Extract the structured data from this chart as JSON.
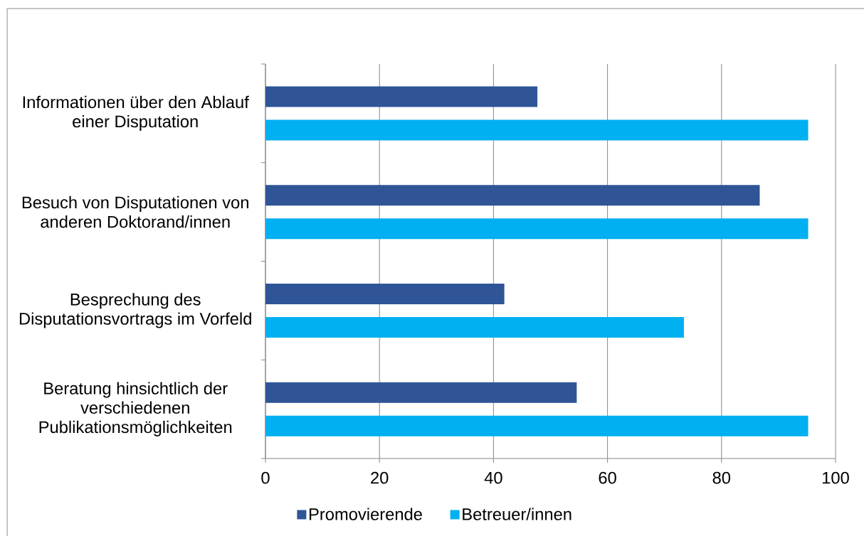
{
  "chart_data": {
    "type": "bar",
    "orientation": "horizontal",
    "categories": [
      "Informationen über den Ablauf einer Disputation",
      "Besuch von Disputationen von anderen Doktorand/innen",
      "Besprechung des Disputationsvortrags im Vorfeld",
      "Beratung hinsichtlich der verschiedenen Publikationsmöglichkeiten"
    ],
    "series": [
      {
        "name": "Promovierende",
        "color": "#2f5597",
        "values": [
          47.7,
          86.7,
          41.9,
          54.6
        ]
      },
      {
        "name": "Betreuer/innen",
        "color": "#00b0f0",
        "values": [
          95.2,
          95.2,
          73.4,
          95.2
        ]
      }
    ],
    "xlim": [
      0,
      100
    ],
    "xticks": [
      0,
      20,
      40,
      60,
      80,
      100
    ],
    "grid": "x",
    "legend": "bottom"
  }
}
